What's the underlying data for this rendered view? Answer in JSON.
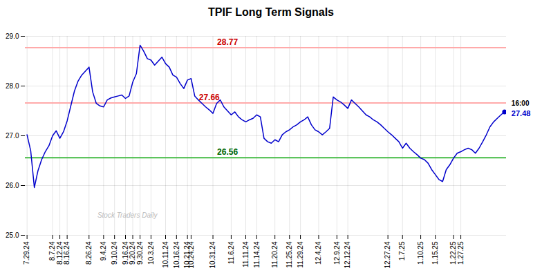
{
  "chart_data": {
    "type": "line",
    "title": "TPIF Long Term Signals",
    "categories": [
      "7.29.24",
      null,
      null,
      null,
      null,
      null,
      null,
      "8.7.24",
      null,
      "8.12.24",
      null,
      "8.16.24",
      null,
      null,
      null,
      null,
      null,
      "8.26.24",
      null,
      null,
      null,
      "9.4.24",
      null,
      null,
      "9.10.24",
      null,
      null,
      "9.16.24",
      null,
      "9.20.24",
      null,
      "9.30.24",
      null,
      null,
      "10.3.24",
      null,
      null,
      null,
      "10.11.24",
      null,
      null,
      "10.16.24",
      null,
      null,
      "10.21.24",
      "10.24.24",
      null,
      null,
      null,
      null,
      null,
      "10.31.24",
      null,
      null,
      null,
      null,
      "11.6.24",
      null,
      null,
      null,
      "11.11.24",
      null,
      null,
      "11.14.24",
      null,
      null,
      null,
      null,
      "11.20.24",
      null,
      null,
      null,
      "11.25.24",
      null,
      null,
      "11.29.24",
      null,
      null,
      null,
      null,
      "12.4.24",
      null,
      null,
      null,
      null,
      "12.9.24",
      null,
      null,
      "12.12.24",
      null,
      null,
      null,
      null,
      null,
      null,
      null,
      null,
      null,
      null,
      "12.27.24",
      null,
      null,
      null,
      "1.7.25",
      null,
      null,
      null,
      null,
      "1.10.25",
      null,
      null,
      null,
      "1.15.25",
      null,
      null,
      null,
      null,
      "1.22.25",
      null,
      "1.27.25",
      null,
      null,
      null,
      null,
      null,
      null,
      null,
      null,
      null,
      null,
      null,
      null
    ],
    "values": [
      27.02,
      26.7,
      25.96,
      26.3,
      26.52,
      26.68,
      26.8,
      27.0,
      27.1,
      26.95,
      27.08,
      27.3,
      27.6,
      27.9,
      28.1,
      28.22,
      28.3,
      28.38,
      27.88,
      27.65,
      27.6,
      27.58,
      27.72,
      27.76,
      27.78,
      27.8,
      27.82,
      27.75,
      27.8,
      28.08,
      28.25,
      28.82,
      28.7,
      28.55,
      28.52,
      28.42,
      28.5,
      28.58,
      28.45,
      28.38,
      28.22,
      28.18,
      28.05,
      27.95,
      28.12,
      28.15,
      27.8,
      27.72,
      27.65,
      27.58,
      27.52,
      27.45,
      27.65,
      27.72,
      27.58,
      27.5,
      27.42,
      27.48,
      27.38,
      27.32,
      27.28,
      27.32,
      27.35,
      27.42,
      27.38,
      26.95,
      26.88,
      26.85,
      26.92,
      26.88,
      27.02,
      27.08,
      27.12,
      27.18,
      27.22,
      27.28,
      27.32,
      27.38,
      27.22,
      27.12,
      27.08,
      27.02,
      27.08,
      27.15,
      27.78,
      27.72,
      27.68,
      27.62,
      27.55,
      27.72,
      27.65,
      27.58,
      27.5,
      27.42,
      27.38,
      27.32,
      27.28,
      27.22,
      27.15,
      27.08,
      27.02,
      26.95,
      26.88,
      26.75,
      26.85,
      26.75,
      26.68,
      26.62,
      26.55,
      26.52,
      26.45,
      26.32,
      26.22,
      26.12,
      26.08,
      26.32,
      26.42,
      26.55,
      26.65,
      26.68,
      26.72,
      26.75,
      26.72,
      26.65,
      26.75,
      26.88,
      27.02,
      27.18,
      27.28,
      27.35,
      27.42,
      27.48
    ],
    "color": "#0000cc",
    "ylim": [
      25,
      29
    ],
    "yticks": [
      25,
      26,
      27,
      28,
      29
    ],
    "grid": true,
    "hlines": [
      {
        "value": 28.77,
        "color": "#ffaaaa",
        "label": "28.77",
        "label_color": "#cc0000"
      },
      {
        "value": 27.66,
        "color": "#ffaaaa",
        "label": "27.66",
        "label_color": "#cc0000"
      },
      {
        "value": 26.56,
        "color": "#44bb44",
        "label": "26.56",
        "label_color": "#006600"
      }
    ],
    "end_label": {
      "time": "16:00",
      "value_label": "27.48",
      "color": "#0000cc"
    },
    "watermark": "Stock Traders Daily"
  }
}
